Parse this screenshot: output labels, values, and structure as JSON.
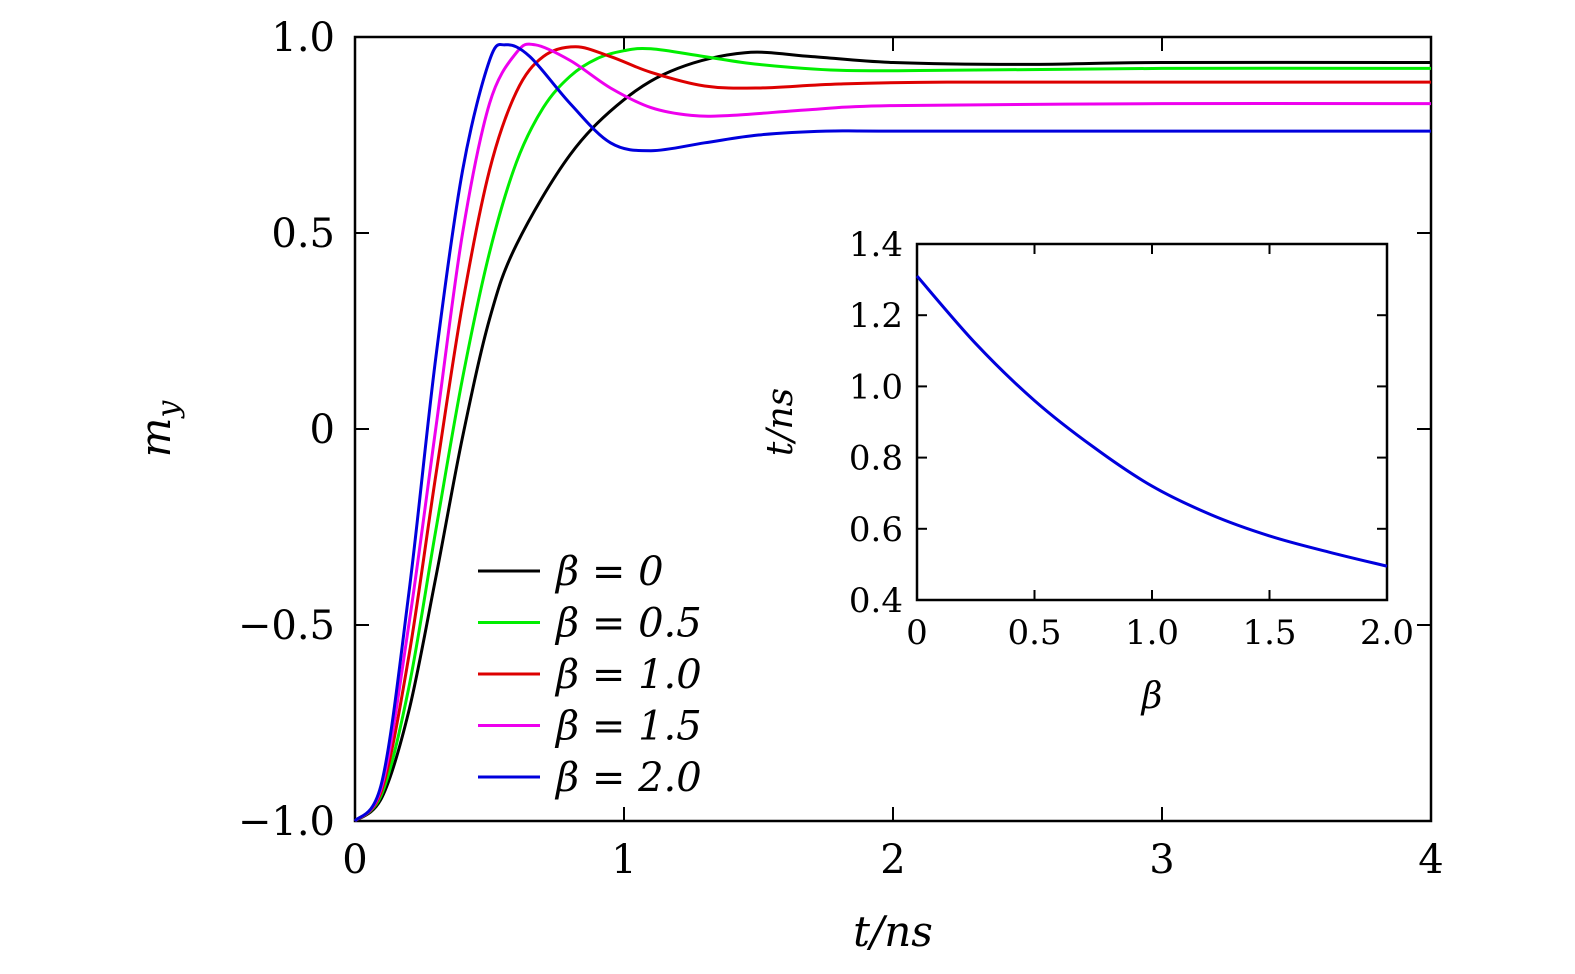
{
  "chart_data": [
    {
      "type": "line",
      "xlabel": "t/ns",
      "ylabel": "m_y",
      "xlim": [
        0,
        4
      ],
      "ylim": [
        -1.0,
        1.0
      ],
      "xticks": [
        0,
        1,
        2,
        3,
        4
      ],
      "xtick_labels": [
        "0",
        "1",
        "2",
        "3",
        "4"
      ],
      "yticks": [
        -1.0,
        -0.5,
        0,
        0.5,
        1.0
      ],
      "ytick_labels": [
        "−1.0",
        "−0.5",
        "0",
        "0.5",
        "1.0"
      ],
      "grid": false,
      "legend_position": "lower-left",
      "series": [
        {
          "name": "β = 0",
          "color": "#000000",
          "x": [
            0,
            0.1,
            0.2,
            0.3,
            0.4,
            0.5,
            0.6,
            0.8,
            1.0,
            1.2,
            1.45,
            1.7,
            2.0,
            2.5,
            3.0,
            4.0
          ],
          "y": [
            -1.0,
            -0.94,
            -0.72,
            -0.38,
            -0.02,
            0.28,
            0.47,
            0.7,
            0.84,
            0.92,
            0.96,
            0.95,
            0.935,
            0.93,
            0.935,
            0.935
          ]
        },
        {
          "name": "β = 0.5",
          "color": "#00ee00",
          "x": [
            0,
            0.1,
            0.2,
            0.3,
            0.4,
            0.5,
            0.6,
            0.7,
            0.8,
            0.9,
            1.0,
            1.1,
            1.3,
            1.5,
            1.8,
            2.2,
            3.0,
            4.0
          ],
          "y": [
            -1.0,
            -0.93,
            -0.66,
            -0.26,
            0.13,
            0.45,
            0.68,
            0.82,
            0.9,
            0.945,
            0.965,
            0.97,
            0.95,
            0.93,
            0.915,
            0.915,
            0.92,
            0.92
          ]
        },
        {
          "name": "β = 1.0",
          "color": "#dd0000",
          "x": [
            0,
            0.1,
            0.2,
            0.3,
            0.4,
            0.5,
            0.6,
            0.7,
            0.82,
            0.95,
            1.1,
            1.3,
            1.5,
            1.8,
            2.2,
            3.0,
            4.0
          ],
          "y": [
            -1.0,
            -0.92,
            -0.58,
            -0.12,
            0.32,
            0.66,
            0.86,
            0.95,
            0.975,
            0.95,
            0.91,
            0.875,
            0.87,
            0.88,
            0.885,
            0.885,
            0.885
          ]
        },
        {
          "name": "β = 1.5",
          "color": "#ee00ee",
          "x": [
            0,
            0.1,
            0.2,
            0.3,
            0.4,
            0.5,
            0.6,
            0.67,
            0.8,
            0.95,
            1.1,
            1.25,
            1.4,
            1.7,
            2.0,
            3.0,
            4.0
          ],
          "y": [
            -1.0,
            -0.91,
            -0.5,
            0.0,
            0.5,
            0.83,
            0.96,
            0.98,
            0.94,
            0.87,
            0.82,
            0.8,
            0.8,
            0.815,
            0.825,
            0.83,
            0.83
          ]
        },
        {
          "name": "β = 2.0",
          "color": "#0000dd",
          "x": [
            0,
            0.1,
            0.2,
            0.3,
            0.4,
            0.5,
            0.56,
            0.65,
            0.8,
            0.95,
            1.1,
            1.3,
            1.5,
            1.75,
            2.0,
            3.0,
            4.0
          ],
          "y": [
            -1.0,
            -0.9,
            -0.42,
            0.18,
            0.66,
            0.94,
            0.98,
            0.95,
            0.83,
            0.73,
            0.71,
            0.73,
            0.75,
            0.76,
            0.76,
            0.76,
            0.76
          ]
        }
      ]
    },
    {
      "type": "line",
      "xlabel": "β",
      "ylabel": "t/ns",
      "xlim": [
        0,
        2.0
      ],
      "ylim": [
        0.4,
        1.4
      ],
      "xticks": [
        0,
        0.5,
        1.0,
        1.5,
        2.0
      ],
      "xtick_labels": [
        "0",
        "0.5",
        "1.0",
        "1.5",
        "2.0"
      ],
      "yticks": [
        0.4,
        0.6,
        0.8,
        1.0,
        1.2,
        1.4
      ],
      "ytick_labels": [
        "0.4",
        "0.6",
        "0.8",
        "1.0",
        "1.2",
        "1.4"
      ],
      "grid": false,
      "series": [
        {
          "color": "#0000dd",
          "x": [
            0,
            0.25,
            0.5,
            0.75,
            1.0,
            1.25,
            1.5,
            1.75,
            2.0
          ],
          "y": [
            1.31,
            1.12,
            0.96,
            0.83,
            0.72,
            0.64,
            0.58,
            0.535,
            0.495
          ]
        }
      ]
    }
  ]
}
